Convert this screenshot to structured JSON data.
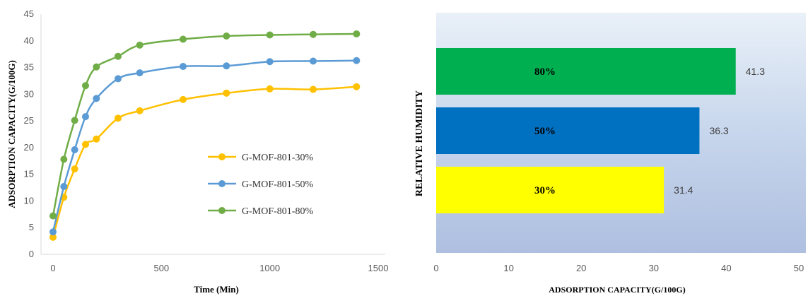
{
  "chart_data": [
    {
      "type": "line",
      "title": "",
      "xlabel": "Time (Min)",
      "ylabel": "ADSORPTION CAPACITY(G/100G)",
      "xlim": [
        0,
        1500
      ],
      "ylim": [
        0,
        45
      ],
      "xticks": [
        "0",
        "500",
        "1000",
        "1500"
      ],
      "yticks": [
        "0",
        "5",
        "10",
        "15",
        "20",
        "25",
        "30",
        "35",
        "40",
        "45"
      ],
      "legend_position": "center-right",
      "grid": false,
      "x": [
        0,
        50,
        100,
        150,
        200,
        300,
        400,
        600,
        800,
        1000,
        1200,
        1400
      ],
      "series": [
        {
          "name": "G-MOF-801-30%",
          "color": "#FFC000",
          "values": [
            3.2,
            10.7,
            16.0,
            20.6,
            21.6,
            25.5,
            26.9,
            29.0,
            30.2,
            31.0,
            30.9,
            31.4
          ]
        },
        {
          "name": "G-MOF-801-50%",
          "color": "#5B9BD5",
          "values": [
            4.2,
            12.7,
            19.6,
            25.8,
            29.2,
            32.9,
            34.0,
            35.2,
            35.3,
            36.1,
            36.2,
            36.3
          ]
        },
        {
          "name": "G-MOF-801-80%",
          "color": "#70AD47",
          "values": [
            7.2,
            17.8,
            25.1,
            31.6,
            35.1,
            37.1,
            39.2,
            40.3,
            40.9,
            41.1,
            41.2,
            41.3
          ]
        }
      ]
    },
    {
      "type": "bar",
      "orientation": "horizontal",
      "title": "",
      "xlabel": "ADSORPTION  CAPACITY(G/100G)",
      "ylabel": "RELATIVE  HUMIDITY",
      "xlim": [
        0,
        50
      ],
      "xticks": [
        "0",
        "10",
        "20",
        "30",
        "40",
        "50"
      ],
      "grid": false,
      "categories": [
        "80%",
        "50%",
        "30%"
      ],
      "values": [
        41.3,
        36.3,
        31.4
      ],
      "value_labels": [
        "41.3",
        "36.3",
        "31.4"
      ],
      "colors": [
        "#00B050",
        "#0070C0",
        "#FFFF00"
      ]
    }
  ]
}
